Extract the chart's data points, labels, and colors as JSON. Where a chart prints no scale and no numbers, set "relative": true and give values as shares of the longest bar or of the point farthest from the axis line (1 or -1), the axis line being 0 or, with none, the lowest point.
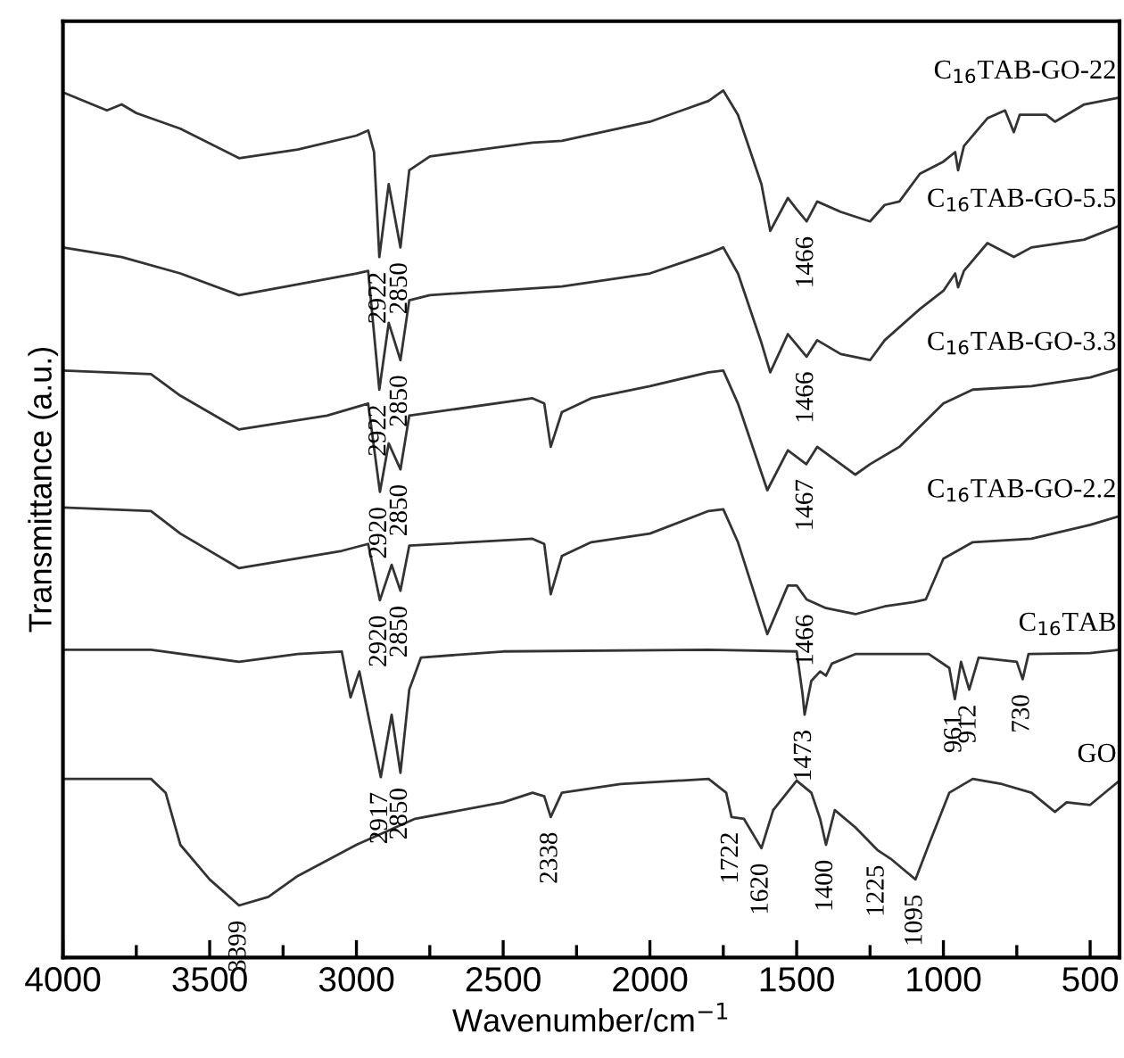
{
  "chart_data": {
    "type": "line",
    "relative": true,
    "xlabel": "Wavenumber/cm$^{−1}$",
    "ylabel": "Transmittance (a.u.)",
    "xlim": [
      4000,
      400
    ],
    "xticks": [
      4000,
      {
        "value": 3750,
        "label": null
      },
      3500,
      {
        "value": 3250,
        "label": null
      },
      3000,
      {
        "value": 2750,
        "label": null
      },
      2500,
      {
        "value": 2250,
        "label": null
      },
      2000,
      {
        "value": 1750,
        "label": null
      },
      1500,
      {
        "value": 1250,
        "label": null
      },
      1000,
      {
        "value": 750,
        "label": null
      },
      500
    ],
    "grid": false,
    "legend": false,
    "marker": "none",
    "line_style": "solid",
    "series": [
      {
        "name": "C$_{16}$TAB-GO-22",
        "color": "#333333",
        "x": [
          4000,
          3850,
          3800,
          3750,
          3600,
          3400,
          3200,
          3000,
          2960,
          2940,
          2922,
          2890,
          2850,
          2820,
          2750,
          2400,
          2300,
          2000,
          1800,
          1750,
          1700,
          1620,
          1590,
          1530,
          1500,
          1466,
          1430,
          1350,
          1250,
          1200,
          1150,
          1080,
          1000,
          960,
          950,
          930,
          850,
          790,
          760,
          740,
          650,
          620,
          520,
          400
        ],
        "values": [
          0.998,
          0.977,
          0.984,
          0.974,
          0.956,
          0.922,
          0.932,
          0.948,
          0.954,
          0.929,
          0.808,
          0.892,
          0.819,
          0.908,
          0.924,
          0.94,
          0.942,
          0.964,
          0.988,
          1.0,
          0.972,
          0.892,
          0.838,
          0.876,
          0.863,
          0.849,
          0.872,
          0.86,
          0.849,
          0.868,
          0.872,
          0.904,
          0.918,
          0.929,
          0.908,
          0.936,
          0.968,
          0.977,
          0.952,
          0.972,
          0.972,
          0.964,
          0.984,
          0.992
        ]
      },
      {
        "name": "C$_{16}$TAB-GO-5.5",
        "color": "#333333",
        "x": [
          4000,
          3800,
          3600,
          3400,
          3000,
          2960,
          2922,
          2890,
          2850,
          2820,
          2750,
          2300,
          2000,
          1800,
          1750,
          1700,
          1620,
          1590,
          1530,
          1466,
          1430,
          1350,
          1250,
          1200,
          1080,
          1000,
          960,
          950,
          930,
          850,
          760,
          700,
          520,
          400
        ],
        "values": [
          0.819,
          0.808,
          0.789,
          0.764,
          0.789,
          0.792,
          0.655,
          0.732,
          0.689,
          0.758,
          0.764,
          0.774,
          0.789,
          0.812,
          0.819,
          0.789,
          0.709,
          0.675,
          0.719,
          0.693,
          0.712,
          0.696,
          0.689,
          0.712,
          0.748,
          0.769,
          0.789,
          0.773,
          0.792,
          0.824,
          0.808,
          0.819,
          0.828,
          0.844
        ]
      },
      {
        "name": "C$_{16}$TAB-GO-3.3",
        "color": "#333333",
        "x": [
          4000,
          3700,
          3600,
          3400,
          3100,
          2960,
          2920,
          2890,
          2850,
          2820,
          2400,
          2360,
          2338,
          2300,
          2200,
          2000,
          1800,
          1750,
          1700,
          1600,
          1530,
          1467,
          1430,
          1300,
          1250,
          1150,
          1000,
          900,
          700,
          500,
          400
        ],
        "values": [
          0.677,
          0.673,
          0.648,
          0.609,
          0.625,
          0.639,
          0.537,
          0.593,
          0.563,
          0.625,
          0.645,
          0.639,
          0.589,
          0.629,
          0.645,
          0.659,
          0.675,
          0.677,
          0.639,
          0.539,
          0.585,
          0.569,
          0.589,
          0.557,
          0.569,
          0.589,
          0.639,
          0.655,
          0.659,
          0.669,
          0.679
        ]
      },
      {
        "name": "C$_{16}$TAB-GO-2.2",
        "color": "#333333",
        "x": [
          4000,
          3700,
          3600,
          3400,
          3050,
          2960,
          2920,
          2880,
          2850,
          2820,
          2400,
          2360,
          2338,
          2300,
          2200,
          2000,
          1800,
          1750,
          1700,
          1600,
          1530,
          1500,
          1466,
          1400,
          1300,
          1200,
          1100,
          1060,
          1000,
          900,
          700,
          500,
          400
        ],
        "values": [
          0.519,
          0.515,
          0.489,
          0.449,
          0.469,
          0.477,
          0.412,
          0.453,
          0.423,
          0.475,
          0.483,
          0.477,
          0.419,
          0.463,
          0.479,
          0.489,
          0.515,
          0.517,
          0.479,
          0.373,
          0.429,
          0.429,
          0.413,
          0.403,
          0.396,
          0.405,
          0.41,
          0.413,
          0.46,
          0.479,
          0.483,
          0.499,
          0.509
        ]
      },
      {
        "name": "C$_{16}$TAB",
        "color": "#333333",
        "x": [
          4000,
          3700,
          3400,
          3200,
          3050,
          3020,
          2990,
          2917,
          2880,
          2850,
          2820,
          2780,
          2500,
          1800,
          1500,
          1480,
          1473,
          1450,
          1420,
          1400,
          1380,
          1300,
          1050,
          980,
          961,
          940,
          912,
          880,
          750,
          730,
          710,
          500,
          400
        ],
        "values": [
          0.355,
          0.355,
          0.341,
          0.35,
          0.353,
          0.3,
          0.33,
          0.208,
          0.28,
          0.213,
          0.309,
          0.346,
          0.353,
          0.355,
          0.353,
          0.304,
          0.28,
          0.319,
          0.33,
          0.325,
          0.339,
          0.35,
          0.35,
          0.334,
          0.298,
          0.341,
          0.309,
          0.346,
          0.341,
          0.321,
          0.35,
          0.351,
          0.355
        ]
      },
      {
        "name": "GO",
        "color": "#333333",
        "x": [
          4000,
          3700,
          3650,
          3600,
          3500,
          3400,
          3300,
          3200,
          3000,
          2800,
          2500,
          2400,
          2360,
          2338,
          2300,
          2100,
          1800,
          1740,
          1722,
          1680,
          1620,
          1580,
          1500,
          1450,
          1420,
          1400,
          1370,
          1300,
          1225,
          1180,
          1095,
          1050,
          980,
          900,
          800,
          700,
          620,
          580,
          500,
          400
        ],
        "values": [
          0.206,
          0.206,
          0.19,
          0.13,
          0.09,
          0.06,
          0.07,
          0.094,
          0.13,
          0.16,
          0.179,
          0.19,
          0.186,
          0.162,
          0.19,
          0.2,
          0.206,
          0.19,
          0.162,
          0.16,
          0.126,
          0.17,
          0.204,
          0.19,
          0.16,
          0.13,
          0.17,
          0.15,
          0.124,
          0.114,
          0.09,
          0.13,
          0.19,
          0.206,
          0.2,
          0.19,
          0.168,
          0.179,
          0.176,
          0.204
        ]
      }
    ],
    "annotations": [
      {
        "text": "2922",
        "x": 2922,
        "y": 0.808
      },
      {
        "text": "2850",
        "x": 2850,
        "y": 0.819
      },
      {
        "text": "1466",
        "x": 1466,
        "y": 0.849
      },
      {
        "text": "2922",
        "x": 2922,
        "y": 0.655
      },
      {
        "text": "2850",
        "x": 2850,
        "y": 0.689
      },
      {
        "text": "1466",
        "x": 1466,
        "y": 0.693
      },
      {
        "text": "2920",
        "x": 2920,
        "y": 0.537
      },
      {
        "text": "2850",
        "x": 2850,
        "y": 0.563
      },
      {
        "text": "1467",
        "x": 1467,
        "y": 0.569
      },
      {
        "text": "2920",
        "x": 2920,
        "y": 0.412
      },
      {
        "text": "2850",
        "x": 2850,
        "y": 0.423
      },
      {
        "text": "1466",
        "x": 1466,
        "y": 0.413
      },
      {
        "text": "2917",
        "x": 2917,
        "y": 0.208
      },
      {
        "text": "2850",
        "x": 2850,
        "y": 0.213
      },
      {
        "text": "1473",
        "x": 1473,
        "y": 0.28
      },
      {
        "text": "961",
        "x": 961,
        "y": 0.298
      },
      {
        "text": "912",
        "x": 912,
        "y": 0.309
      },
      {
        "text": "730",
        "x": 730,
        "y": 0.321
      },
      {
        "text": "3399",
        "x": 3399,
        "y": 0.06
      },
      {
        "text": "2338",
        "x": 2338,
        "y": 0.162
      },
      {
        "text": "1722",
        "x": 1722,
        "y": 0.162
      },
      {
        "text": "1620",
        "x": 1620,
        "y": 0.126
      },
      {
        "text": "1400",
        "x": 1400,
        "y": 0.13
      },
      {
        "text": "1225",
        "x": 1225,
        "y": 0.124
      },
      {
        "text": "1095",
        "x": 1095,
        "y": 0.09
      }
    ]
  }
}
